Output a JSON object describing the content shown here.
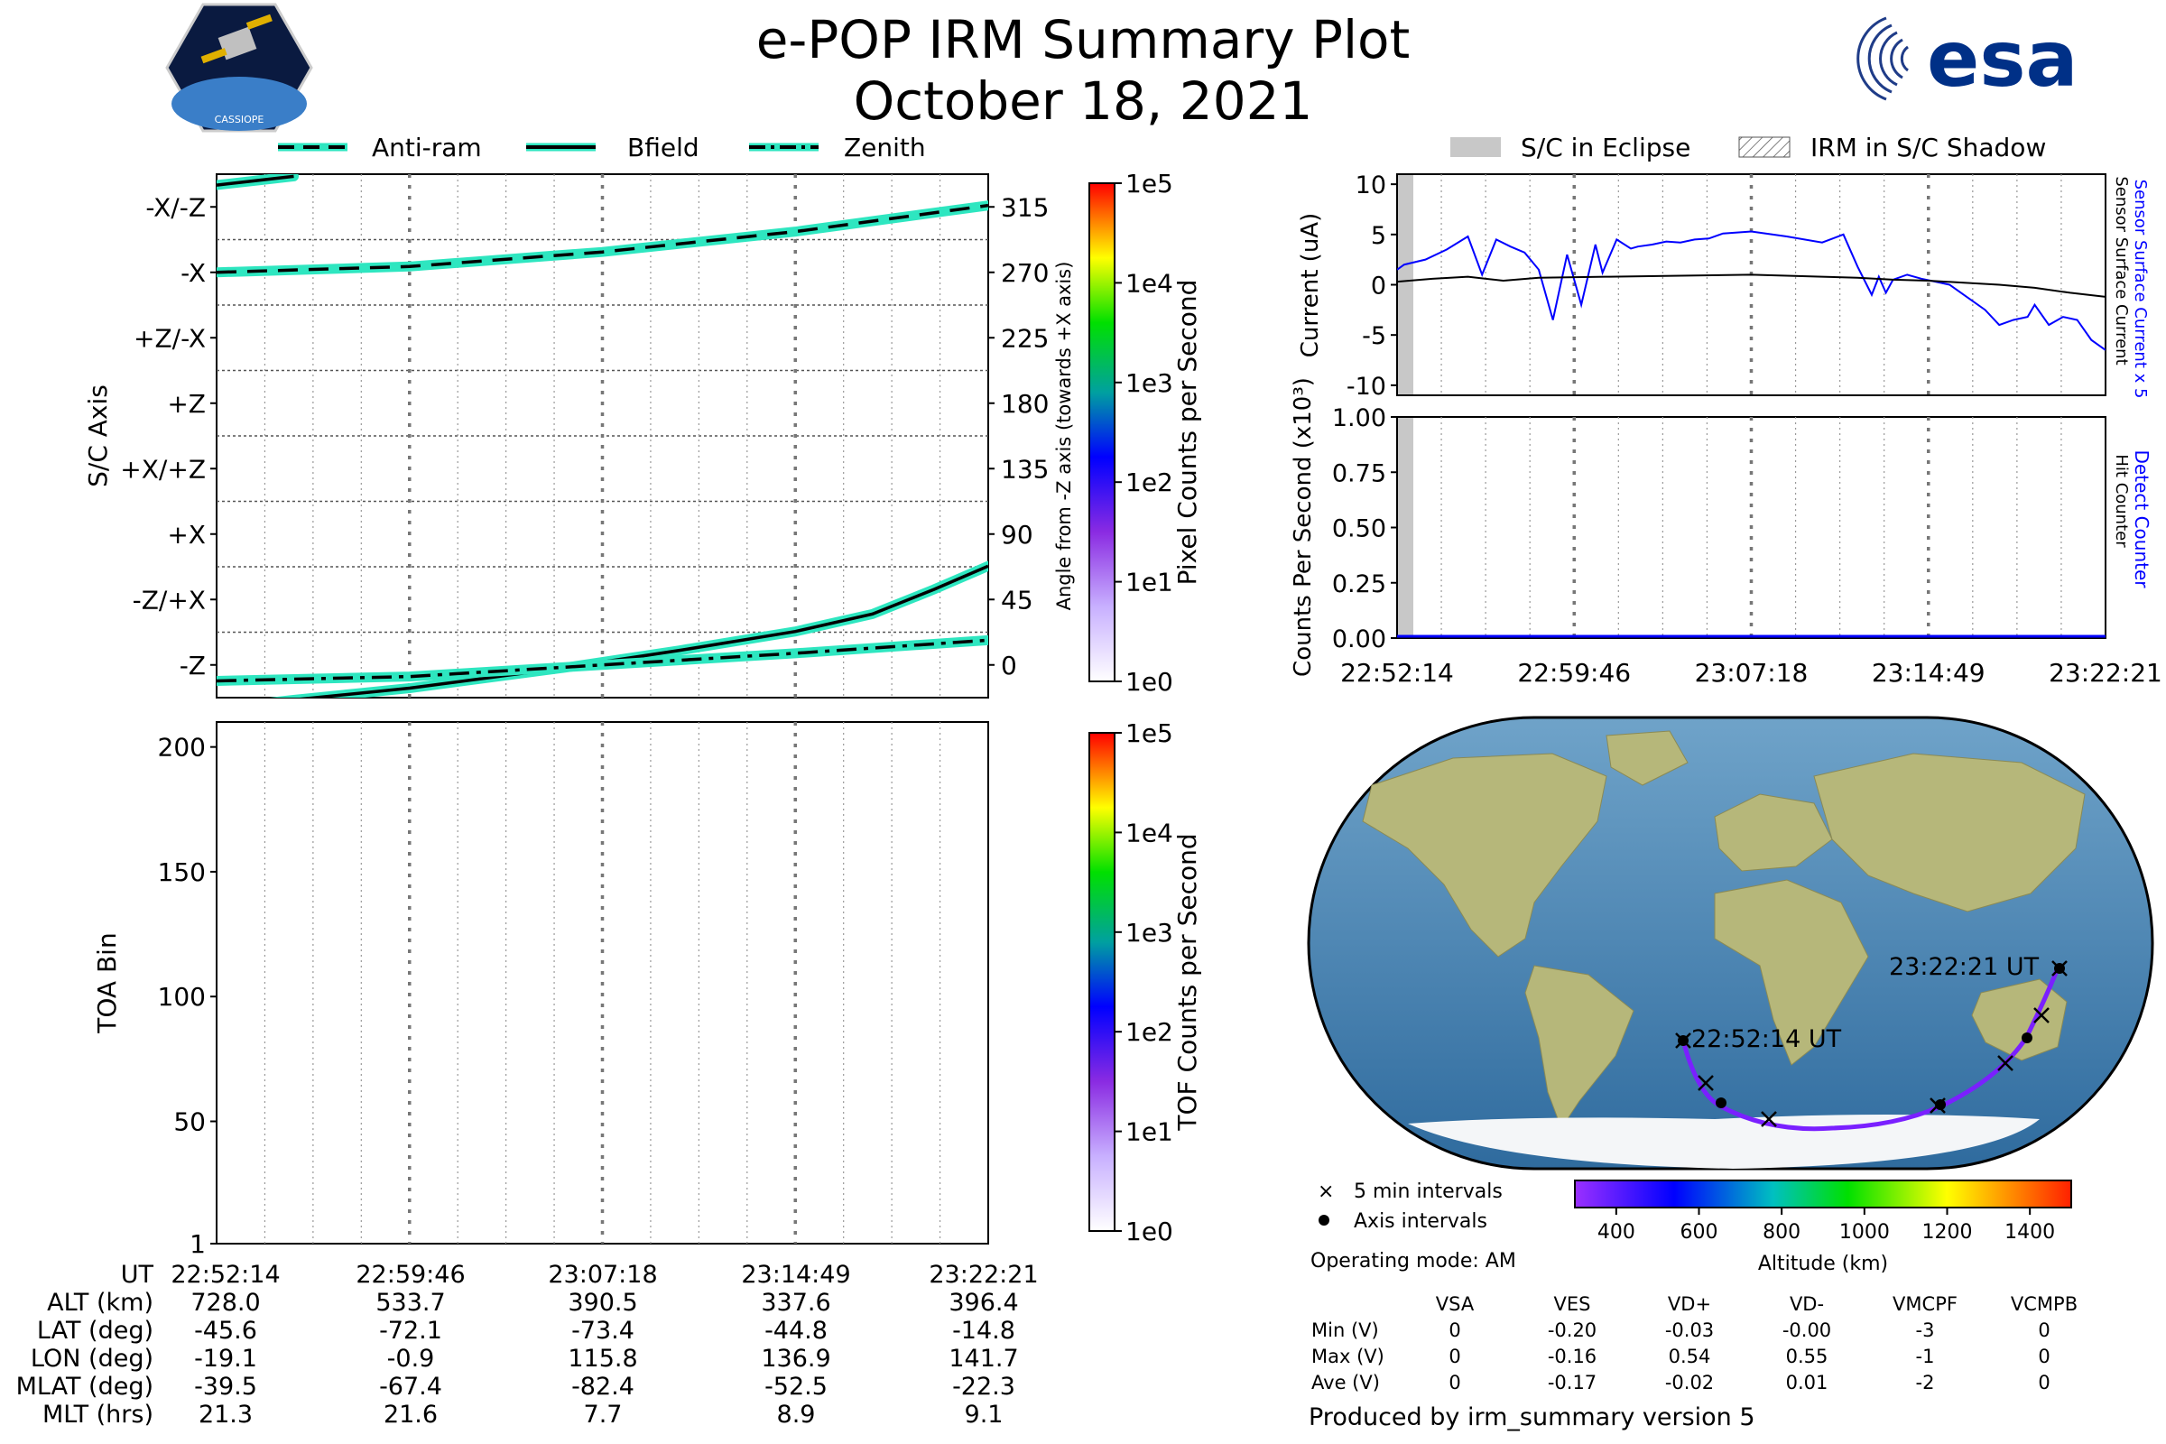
{
  "header": {
    "title": "e-POP IRM Summary Plot",
    "date": "October 18, 2021",
    "esa_logo_text": "esa",
    "cassiope_logo_text": "CASSIOPE"
  },
  "line_legend": {
    "anti_ram": "Anti-ram",
    "bfield": "Bfield",
    "zenith": "Zenith"
  },
  "eclipse_legend": {
    "eclipse": "S/C in Eclipse",
    "shadow": "IRM in S/C Shadow"
  },
  "colors": {
    "bfield_glow": "#2ee6c0",
    "current_blue": "#0000ff",
    "eclipse_gray": "#c8c8c8"
  },
  "time_ticks": [
    "22:52:14",
    "22:59:46",
    "23:07:18",
    "23:14:49",
    "23:22:21"
  ],
  "chart_data": [
    {
      "type": "line",
      "name": "sc_axis",
      "ylabel": "S/C Axis",
      "y2label": "Angle from -Z axis (towards +X axis)",
      "ylim": [
        -22.5,
        337.5
      ],
      "axis_labels": [
        "-Z",
        "-Z/+X",
        "+X",
        "+X/+Z",
        "+Z",
        "+Z/-X",
        "-X",
        "-X/-Z"
      ],
      "axis_angles": [
        0,
        45,
        90,
        135,
        180,
        225,
        270,
        315
      ],
      "right_ticks": [
        "0",
        "45",
        "90",
        "135",
        "180",
        "225",
        "270",
        "315"
      ],
      "series": [
        {
          "name": "Anti-ram",
          "style": "dashed",
          "x": [
            0,
            0.25,
            0.5,
            0.75,
            1.0
          ],
          "y": [
            270,
            274,
            284,
            298,
            316
          ]
        },
        {
          "name": "Bfield",
          "style": "solid",
          "x": [
            0,
            0.1,
            0.25,
            0.45,
            0.6,
            0.75,
            0.85,
            0.93,
            1.0
          ],
          "y": [
            -30,
            -24,
            -16,
            -2,
            10,
            23,
            35,
            52,
            68
          ]
        },
        {
          "name": "Bfield-upper",
          "style": "solid",
          "x": [
            0,
            0.05,
            0.1
          ],
          "y": [
            330,
            333,
            336
          ]
        },
        {
          "name": "Zenith",
          "style": "dashdot",
          "x": [
            0,
            0.25,
            0.5,
            0.75,
            1.0
          ],
          "y": [
            -11,
            -8,
            0,
            8,
            17
          ]
        }
      ],
      "colorbar": {
        "label": "Pixel Counts per Second",
        "ticks": [
          "1e0",
          "1e1",
          "1e2",
          "1e3",
          "1e4",
          "1e5"
        ]
      }
    },
    {
      "type": "heatmap",
      "name": "toa",
      "ylabel": "TOA Bin",
      "ylim": [
        1,
        210
      ],
      "yticks": [
        "1",
        "50",
        "100",
        "150",
        "200"
      ],
      "ytick_values": [
        1,
        50,
        100,
        150,
        200
      ],
      "colorbar": {
        "label": "TOF Counts per Second",
        "ticks": [
          "1e0",
          "1e1",
          "1e2",
          "1e3",
          "1e4",
          "1e5"
        ]
      }
    },
    {
      "type": "line",
      "name": "current",
      "ylabel": "Current (uA)",
      "ylim": [
        -11,
        11
      ],
      "yticks": [
        "10",
        "5",
        "0",
        "-5",
        "-10"
      ],
      "ytick_values": [
        10,
        5,
        0,
        -5,
        -10
      ],
      "right_label_1": "Sensor Surface Current x 5",
      "right_label_2": "Sensor Surface Current",
      "series": [
        {
          "name": "Sensor Surface Current x 5",
          "x": [
            0,
            0.01,
            0.04,
            0.07,
            0.1,
            0.12,
            0.14,
            0.16,
            0.18,
            0.2,
            0.22,
            0.24,
            0.26,
            0.28,
            0.29,
            0.31,
            0.33,
            0.34,
            0.36,
            0.38,
            0.4,
            0.42,
            0.44,
            0.46,
            0.5,
            0.55,
            0.6,
            0.63,
            0.65,
            0.67,
            0.68,
            0.69,
            0.7,
            0.72,
            0.74,
            0.76,
            0.78,
            0.8,
            0.83,
            0.85,
            0.87,
            0.89,
            0.9,
            0.92,
            0.94,
            0.96,
            0.98,
            1.0
          ],
          "y": [
            1.5,
            2.0,
            2.5,
            3.5,
            4.8,
            1.0,
            4.5,
            3.8,
            3.2,
            1.5,
            -3.5,
            3.0,
            -2.0,
            4.0,
            1.2,
            4.5,
            3.6,
            3.8,
            4.0,
            4.3,
            4.2,
            4.5,
            4.6,
            5.1,
            5.3,
            4.8,
            4.2,
            5.0,
            1.8,
            -1.0,
            0.8,
            -0.8,
            0.5,
            1.0,
            0.6,
            0.3,
            0.0,
            -1.0,
            -2.5,
            -4.0,
            -3.5,
            -3.2,
            -2.0,
            -4.0,
            -3.2,
            -3.5,
            -5.5,
            -6.5
          ]
        },
        {
          "name": "Sensor Surface Current",
          "x": [
            0,
            0.05,
            0.1,
            0.15,
            0.2,
            0.3,
            0.4,
            0.5,
            0.6,
            0.65,
            0.7,
            0.75,
            0.8,
            0.85,
            0.9,
            0.95,
            1.0
          ],
          "y": [
            0.3,
            0.6,
            0.8,
            0.4,
            0.7,
            0.8,
            0.9,
            1.0,
            0.8,
            0.7,
            0.5,
            0.4,
            0.2,
            0.0,
            -0.3,
            -0.8,
            -1.2
          ]
        }
      ]
    },
    {
      "type": "line",
      "name": "counts",
      "ylabel": "Counts Per Second (x10³)",
      "ylim": [
        0,
        1.0
      ],
      "yticks": [
        "1.00",
        "0.75",
        "0.50",
        "0.25",
        "0.00"
      ],
      "ytick_values": [
        1.0,
        0.75,
        0.5,
        0.25,
        0.0
      ],
      "right_label_1": "Detect Counter",
      "right_label_2": "Hit Counter",
      "series": [
        {
          "name": "Detect Counter",
          "x": [
            0,
            1
          ],
          "y": [
            0,
            0
          ]
        },
        {
          "name": "Hit Counter",
          "x": [
            0,
            1
          ],
          "y": [
            0,
            0
          ]
        }
      ]
    }
  ],
  "map": {
    "start_label": "22:52:14 UT",
    "end_label": "23:22:21 UT",
    "legend_5min": "5 min intervals",
    "legend_axis": "Axis intervals",
    "operating_mode": "Operating mode: AM",
    "altitude_label": "Altitude (km)",
    "altitude_ticks": [
      "400",
      "600",
      "800",
      "1000",
      "1200",
      "1400"
    ]
  },
  "orbit_table": {
    "row_labels": [
      "UT",
      "ALT (km)",
      "LAT (deg)",
      "LON (deg)",
      "MLAT (deg)",
      "MLT (hrs)"
    ],
    "columns": [
      [
        "22:52:14",
        "728.0",
        "-45.6",
        "-19.1",
        "-39.5",
        "21.3"
      ],
      [
        "22:59:46",
        "533.7",
        "-72.1",
        "-0.9",
        "-67.4",
        "21.6"
      ],
      [
        "23:07:18",
        "390.5",
        "-73.4",
        "115.8",
        "-82.4",
        "7.7"
      ],
      [
        "23:14:49",
        "337.6",
        "-44.8",
        "136.9",
        "-52.5",
        "8.9"
      ],
      [
        "23:22:21",
        "396.4",
        "-14.8",
        "141.7",
        "-22.3",
        "9.1"
      ]
    ]
  },
  "voltage_table": {
    "headers": [
      "VSA",
      "VES",
      "VD+",
      "VD-",
      "VMCPF",
      "VCMPB"
    ],
    "rows": [
      {
        "label": "Min (V)",
        "values": [
          "0",
          "-0.20",
          "-0.03",
          "-0.00",
          "-3",
          "0"
        ]
      },
      {
        "label": "Max (V)",
        "values": [
          "0",
          "-0.16",
          "0.54",
          "0.55",
          "-1",
          "0"
        ]
      },
      {
        "label": "Ave (V)",
        "values": [
          "0",
          "-0.17",
          "-0.02",
          "0.01",
          "-2",
          "0"
        ]
      }
    ]
  },
  "footer": "Produced by irm_summary version 5"
}
